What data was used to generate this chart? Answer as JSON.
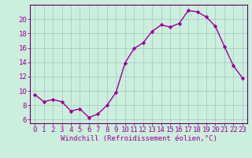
{
  "x": [
    0,
    1,
    2,
    3,
    4,
    5,
    6,
    7,
    8,
    9,
    10,
    11,
    12,
    13,
    14,
    15,
    16,
    17,
    18,
    19,
    20,
    21,
    22,
    23
  ],
  "y": [
    9.5,
    8.5,
    8.8,
    8.5,
    7.2,
    7.5,
    6.3,
    6.8,
    8.0,
    9.8,
    13.9,
    15.9,
    16.7,
    18.3,
    19.2,
    18.9,
    19.4,
    21.2,
    21.0,
    20.3,
    19.0,
    16.2,
    13.5,
    11.8
  ],
  "line_color": "#990099",
  "marker": "D",
  "markersize": 2.2,
  "linewidth": 1.0,
  "bg_color": "#cceedd",
  "grid_color": "#aacccc",
  "xlabel": "Windchill (Refroidissement éolien,°C)",
  "xlabel_fontsize": 6.5,
  "xtick_labels": [
    "0",
    "1",
    "2",
    "3",
    "4",
    "5",
    "6",
    "7",
    "8",
    "9",
    "10",
    "11",
    "12",
    "13",
    "14",
    "15",
    "16",
    "17",
    "18",
    "19",
    "20",
    "21",
    "22",
    "23"
  ],
  "ytick_values": [
    6,
    8,
    10,
    12,
    14,
    16,
    18,
    20
  ],
  "ylim": [
    5.5,
    22.0
  ],
  "xlim": [
    -0.5,
    23.5
  ],
  "tick_fontsize": 6.5,
  "spine_color": "#660066"
}
